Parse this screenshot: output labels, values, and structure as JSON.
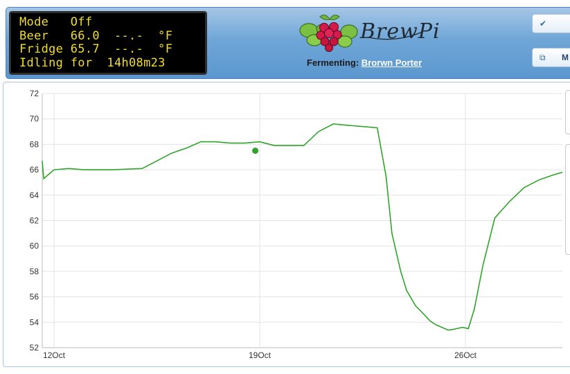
{
  "lcd": {
    "lines": [
      "Mode   Off",
      "Beer   66.0  --.-  °F",
      "Fridge 65.7  --.-  °F",
      "Idling for  14h08m23"
    ]
  },
  "header": {
    "brand": "BrewPi",
    "fermenting_label": "Fermenting:",
    "beer_name": "Brorwn Porter",
    "buttons": [
      {
        "icon": "check-icon",
        "label": ""
      },
      {
        "icon": "window-icon",
        "label": "M"
      }
    ]
  },
  "colors": {
    "lcd_text": "#f2de2a",
    "series": "#2ea42a",
    "header_bg": "#6fa6d7"
  },
  "chart_data": {
    "type": "line",
    "title": "",
    "xlabel": "",
    "ylabel": "",
    "ylim": [
      52,
      72
    ],
    "y_ticks": [
      52,
      54,
      56,
      58,
      60,
      62,
      64,
      66,
      68,
      70,
      72
    ],
    "x_ticks": [
      "12Oct",
      "19Oct",
      "26Oct"
    ],
    "x_tick_days": [
      0,
      7,
      14
    ],
    "xlim_days": [
      -0.4,
      17.3
    ],
    "grid": true,
    "series": [
      {
        "name": "",
        "color": "#2ea42a",
        "x_days": [
          -0.4,
          -0.35,
          -0.2,
          0,
          0.5,
          1,
          2,
          3,
          3.5,
          4,
          4.5,
          5,
          5.5,
          6,
          6.5,
          7,
          7.5,
          8,
          8.5,
          9,
          9.5,
          10,
          10.5,
          11,
          11.3,
          11.5,
          11.8,
          12,
          12.3,
          12.6,
          12.8,
          13,
          13.2,
          13.4,
          13.5,
          13.7,
          13.9,
          14.1,
          14.3,
          14.6,
          15,
          15.5,
          16,
          16.5,
          17,
          17.3
        ],
        "y": [
          66.7,
          65.3,
          65.6,
          66.0,
          66.1,
          66.0,
          66.0,
          66.1,
          66.7,
          67.3,
          67.7,
          68.2,
          68.2,
          68.1,
          68.1,
          68.2,
          67.9,
          67.9,
          67.9,
          69.0,
          69.6,
          69.5,
          69.4,
          69.3,
          65.5,
          61.0,
          58.0,
          56.5,
          55.3,
          54.6,
          54.1,
          53.8,
          53.6,
          53.4,
          53.4,
          53.5,
          53.6,
          53.5,
          55.0,
          58.5,
          62.2,
          63.5,
          64.6,
          65.2,
          65.6,
          65.8
        ]
      }
    ],
    "markers": [
      {
        "x_days": 6.85,
        "y": 67.5
      }
    ]
  }
}
